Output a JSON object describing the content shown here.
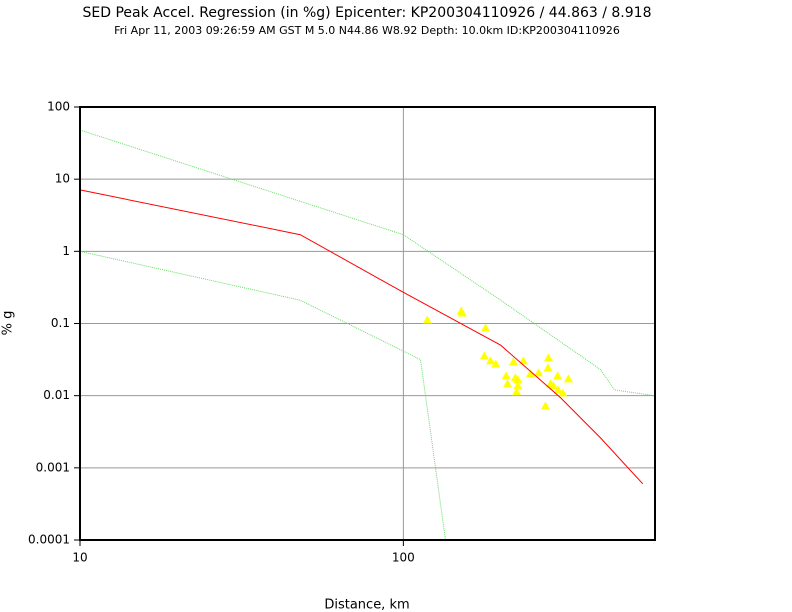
{
  "chart_data": {
    "type": "scatter",
    "title": "SED Peak Accel. Regression (in %g) Epicenter: KP200304110926 / 44.863 / 8.918",
    "subtitle": "Fri Apr 11, 2003 09:26:59 AM GST    M 5.0    N44.86 W8.92    Depth: 10.0km    ID:KP200304110926",
    "x_label": "Distance, km",
    "y_label": "% g",
    "xscale": "log",
    "yscale": "log",
    "grid": true,
    "xlim": [
      10,
      600
    ],
    "ylim": [
      0.0001,
      100
    ],
    "xticks": [
      10,
      100
    ],
    "yticks": [
      100,
      10,
      1,
      0.1,
      0.01,
      0.001,
      0.0001
    ],
    "series": [
      {
        "style": "markers",
        "color": "#ffff00",
        "x": [
          118.6,
          151,
          152,
          179.5,
          178,
          186,
          193,
          208,
          210,
          219,
          222,
          224,
          226,
          226,
          235,
          247,
          262,
          275,
          281,
          280,
          285,
          291,
          300,
          301,
          311,
          324
        ],
        "values": [
          0.112,
          0.149,
          0.14,
          0.087,
          0.0356,
          0.0303,
          0.0275,
          0.0188,
          0.0146,
          0.0294,
          0.0177,
          0.0113,
          0.0137,
          0.0166,
          0.0303,
          0.02,
          0.0207,
          0.0072,
          0.0334,
          0.0243,
          0.0146,
          0.0137,
          0.0188,
          0.012,
          0.0109,
          0.0171
        ]
      },
      {
        "style": "line",
        "color": "#ff0000",
        "x": [
          10,
          48,
          100,
          200,
          306,
          407,
          550
        ],
        "values": [
          7.1,
          1.7,
          0.27,
          0.05,
          0.0094,
          0.0026,
          0.0006
        ]
      },
      {
        "style": "dotted",
        "color": "#66dd66",
        "x": [
          10,
          100,
          200,
          407,
          450,
          600
        ],
        "values": [
          48,
          1.7,
          0.21,
          0.023,
          0.012,
          0.01
        ]
      },
      {
        "style": "dotted",
        "color": "#66dd66",
        "x": [
          10,
          48,
          113,
          135
        ],
        "values": [
          1,
          0.21,
          0.0316,
          0.0001
        ]
      }
    ]
  }
}
